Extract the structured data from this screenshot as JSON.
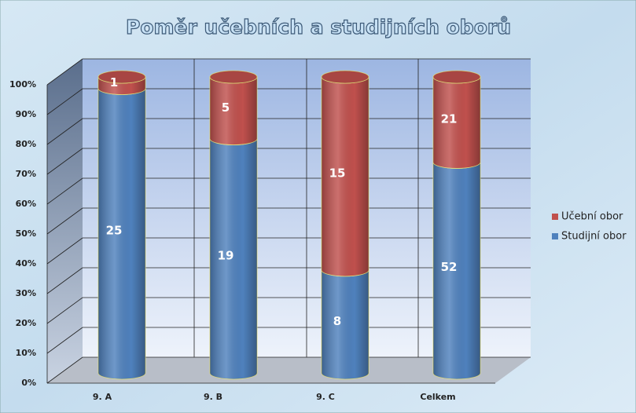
{
  "chart_data": {
    "type": "bar",
    "stacking": "percent",
    "title": "Poměr učebních a studijních oborů",
    "categories": [
      "9. A",
      "9. B",
      "9. C",
      "Celkem"
    ],
    "series": [
      {
        "name": "Studijní obor",
        "color": "#4f81bd",
        "values": [
          25,
          19,
          8,
          52
        ]
      },
      {
        "name": "Učební obor",
        "color": "#c0504d",
        "values": [
          1,
          5,
          15,
          21
        ]
      }
    ],
    "ylim": [
      0,
      100
    ],
    "yticks": [
      {
        "value": 0,
        "label": "0%"
      },
      {
        "value": 10,
        "label": "10%"
      },
      {
        "value": 20,
        "label": "20%"
      },
      {
        "value": 30,
        "label": "30%"
      },
      {
        "value": 40,
        "label": "40%"
      },
      {
        "value": 50,
        "label": "50%"
      },
      {
        "value": 60,
        "label": "60%"
      },
      {
        "value": 70,
        "label": "70%"
      },
      {
        "value": 80,
        "label": "80%"
      },
      {
        "value": 90,
        "label": "90%"
      },
      {
        "value": 100,
        "label": "100%"
      }
    ],
    "grid": true,
    "legend": "right"
  }
}
